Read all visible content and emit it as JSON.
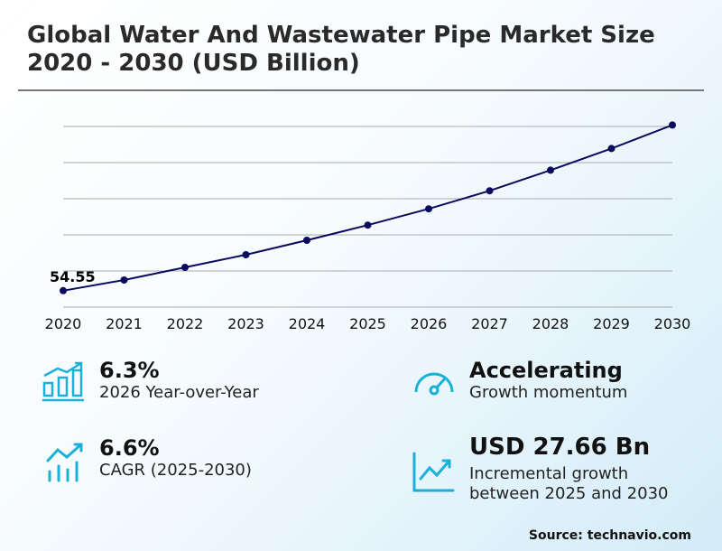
{
  "title_line1": "Global Water And Wastewater Pipe Market Size",
  "title_line2": "2020 - 2030 (USD Billion)",
  "chart_data": {
    "type": "line",
    "title": "Global Water And Wastewater Pipe Market Size 2020 - 2030 (USD Billion)",
    "categories": [
      "2020",
      "2021",
      "2022",
      "2023",
      "2024",
      "2025",
      "2026",
      "2027",
      "2028",
      "2029",
      "2030"
    ],
    "values": [
      54.55,
      57.5,
      61.0,
      64.5,
      68.5,
      72.7,
      77.2,
      82.2,
      87.9,
      93.9,
      100.4
    ],
    "data_label": "54.55",
    "ylim": [
      50,
      100
    ],
    "grid": true,
    "line_color": "#0a0a5e"
  },
  "stats": [
    {
      "value": "6.3%",
      "label": "2026 Year-over-Year",
      "icon": "bar-chart-up-icon"
    },
    {
      "value": "Accelerating",
      "label": "Growth momentum",
      "icon": "gauge-icon"
    },
    {
      "value": "6.6%",
      "label": "CAGR (2025-2030)",
      "icon": "trend-bars-icon"
    },
    {
      "value": "USD 27.66 Bn",
      "label_line1": "Incremental growth",
      "label_line2": "between 2025 and 2030",
      "icon": "line-chart-icon"
    }
  ],
  "accent": "#1ab0d8",
  "source": "Source: technavio.com"
}
